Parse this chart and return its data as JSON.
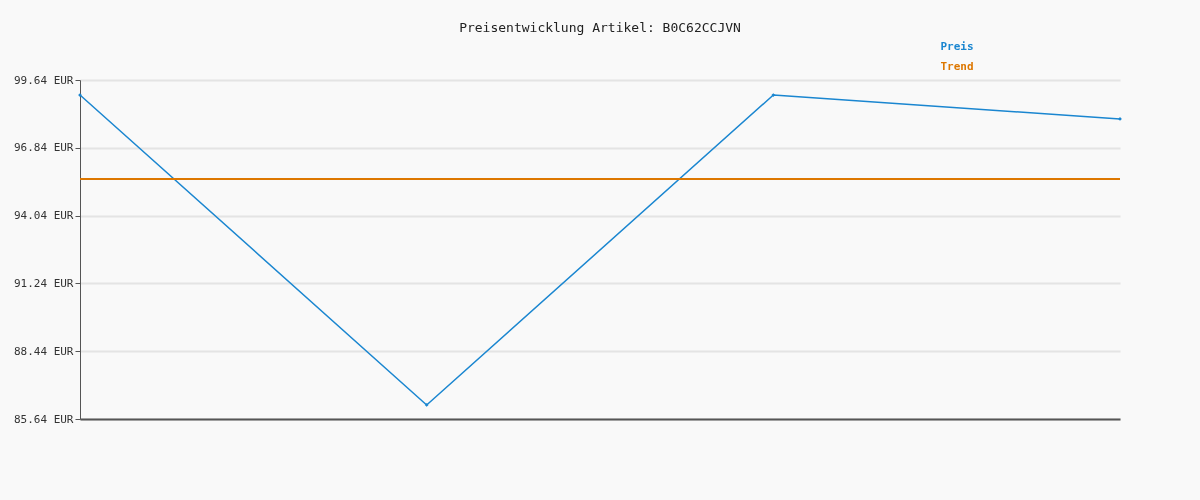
{
  "chart_data": {
    "type": "line",
    "title": "Preisentwicklung Artikel: B0C62CCJVN",
    "categories": [
      null,
      null,
      null,
      null
    ],
    "series": [
      {
        "name": "Preis",
        "color": "#1a86d0",
        "values": [
          99.02,
          86.22,
          99.02,
          98.03
        ],
        "marker": "diamond"
      },
      {
        "name": "Trend",
        "color": "#dd7700",
        "values": [
          95.55,
          95.55,
          95.55,
          95.55
        ],
        "marker": "none"
      }
    ],
    "ylim": [
      85.64,
      99.64
    ],
    "yticks": [
      {
        "value": 85.64,
        "label": "85.64 EUR"
      },
      {
        "value": 88.44,
        "label": "88.44 EUR"
      },
      {
        "value": 91.24,
        "label": "91.24 EUR"
      },
      {
        "value": 94.04,
        "label": "94.04 EUR"
      },
      {
        "value": 96.84,
        "label": "96.84 EUR"
      },
      {
        "value": 99.64,
        "label": "99.64 EUR"
      }
    ],
    "grid": "y",
    "legend": "top right",
    "tick_labels": "y",
    "line_style": "solid"
  }
}
